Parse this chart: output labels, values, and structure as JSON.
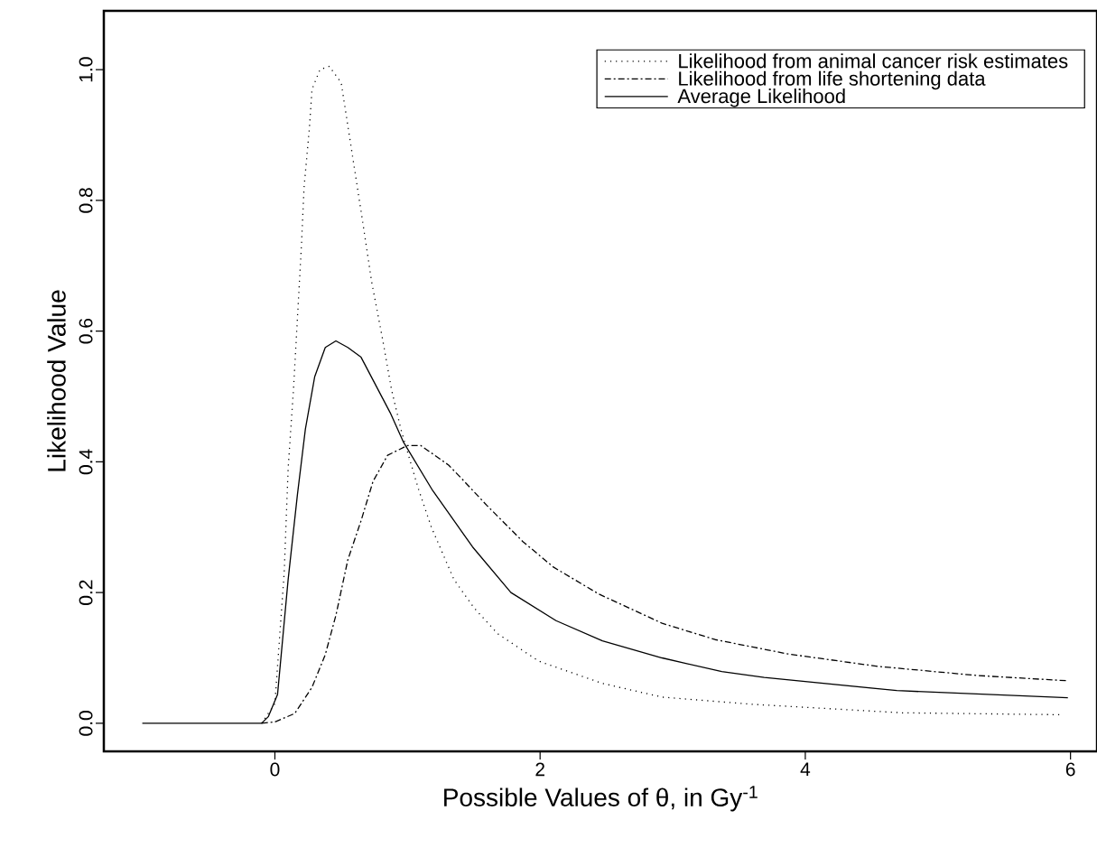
{
  "chart_data": {
    "type": "line",
    "xlabel": "Possible Values of θ, in Gy$^{-1}$",
    "ylabel": "Likelihood Value",
    "xlim": [
      -1.29,
      6.2
    ],
    "ylim": [
      -0.043,
      1.09
    ],
    "xticks": [
      0,
      2,
      4,
      6
    ],
    "yticks": [
      {
        "value": 0,
        "label": "0.0"
      },
      {
        "value": 0.2,
        "label": "0.2"
      },
      {
        "value": 0.4,
        "label": "0.4"
      },
      {
        "value": 0.6,
        "label": "0.6"
      },
      {
        "value": 0.8,
        "label": "0.8"
      },
      {
        "value": 1,
        "label": "1.0"
      }
    ],
    "grid": false,
    "legend": "top right",
    "series": [
      {
        "name": "Likelihood from animal cancer risk estimates",
        "color": "#000000",
        "line_style": "dotted",
        "x": [
          -0.1,
          0,
          0.07,
          0.1,
          0.14,
          0.17,
          0.2,
          0.22,
          0.26,
          0.28,
          0.34,
          0.41,
          0.5,
          0.58,
          0.66,
          0.73,
          0.81,
          0.88,
          0.95,
          1.08,
          1.18,
          1.35,
          1.5,
          1.68,
          1.99,
          2.47,
          2.92,
          3.6,
          4.73,
          5.94
        ],
        "values": [
          0,
          0.03,
          0.23,
          0.39,
          0.51,
          0.62,
          0.73,
          0.82,
          0.91,
          0.97,
          1.0,
          1.005,
          0.98,
          0.875,
          0.77,
          0.675,
          0.59,
          0.51,
          0.45,
          0.36,
          0.3,
          0.22,
          0.177,
          0.137,
          0.095,
          0.061,
          0.04,
          0.029,
          0.016,
          0.013
        ]
      },
      {
        "name": "Likelihood from life shortening data",
        "color": "#000000",
        "line_style": "dashed",
        "x": [
          -0.1,
          0,
          0.15,
          0.28,
          0.38,
          0.46,
          0.55,
          0.65,
          0.74,
          0.85,
          1.0,
          1.1,
          1.31,
          1.41,
          1.6,
          1.87,
          2.1,
          2.44,
          2.92,
          3.32,
          3.62,
          3.87,
          4.55,
          5.3,
          5.98
        ],
        "values": [
          0,
          0.002,
          0.015,
          0.055,
          0.105,
          0.165,
          0.25,
          0.31,
          0.37,
          0.41,
          0.425,
          0.425,
          0.395,
          0.374,
          0.333,
          0.278,
          0.239,
          0.198,
          0.153,
          0.128,
          0.116,
          0.106,
          0.087,
          0.073,
          0.065
        ]
      },
      {
        "name": "Average Likelihood",
        "color": "#000000",
        "line_style": "solid",
        "x": [
          -1,
          -0.1,
          -0.05,
          0.02,
          0.1,
          0.17,
          0.23,
          0.3,
          0.38,
          0.46,
          0.55,
          0.65,
          0.87,
          0.97,
          1.19,
          1.49,
          1.78,
          2.12,
          2.47,
          2.92,
          3.37,
          3.69,
          4.69,
          5.98
        ],
        "values": [
          0,
          0,
          0.01,
          0.044,
          0.22,
          0.35,
          0.45,
          0.53,
          0.575,
          0.585,
          0.575,
          0.56,
          0.475,
          0.43,
          0.356,
          0.27,
          0.2,
          0.157,
          0.126,
          0.1,
          0.079,
          0.07,
          0.05,
          0.039
        ]
      }
    ]
  }
}
